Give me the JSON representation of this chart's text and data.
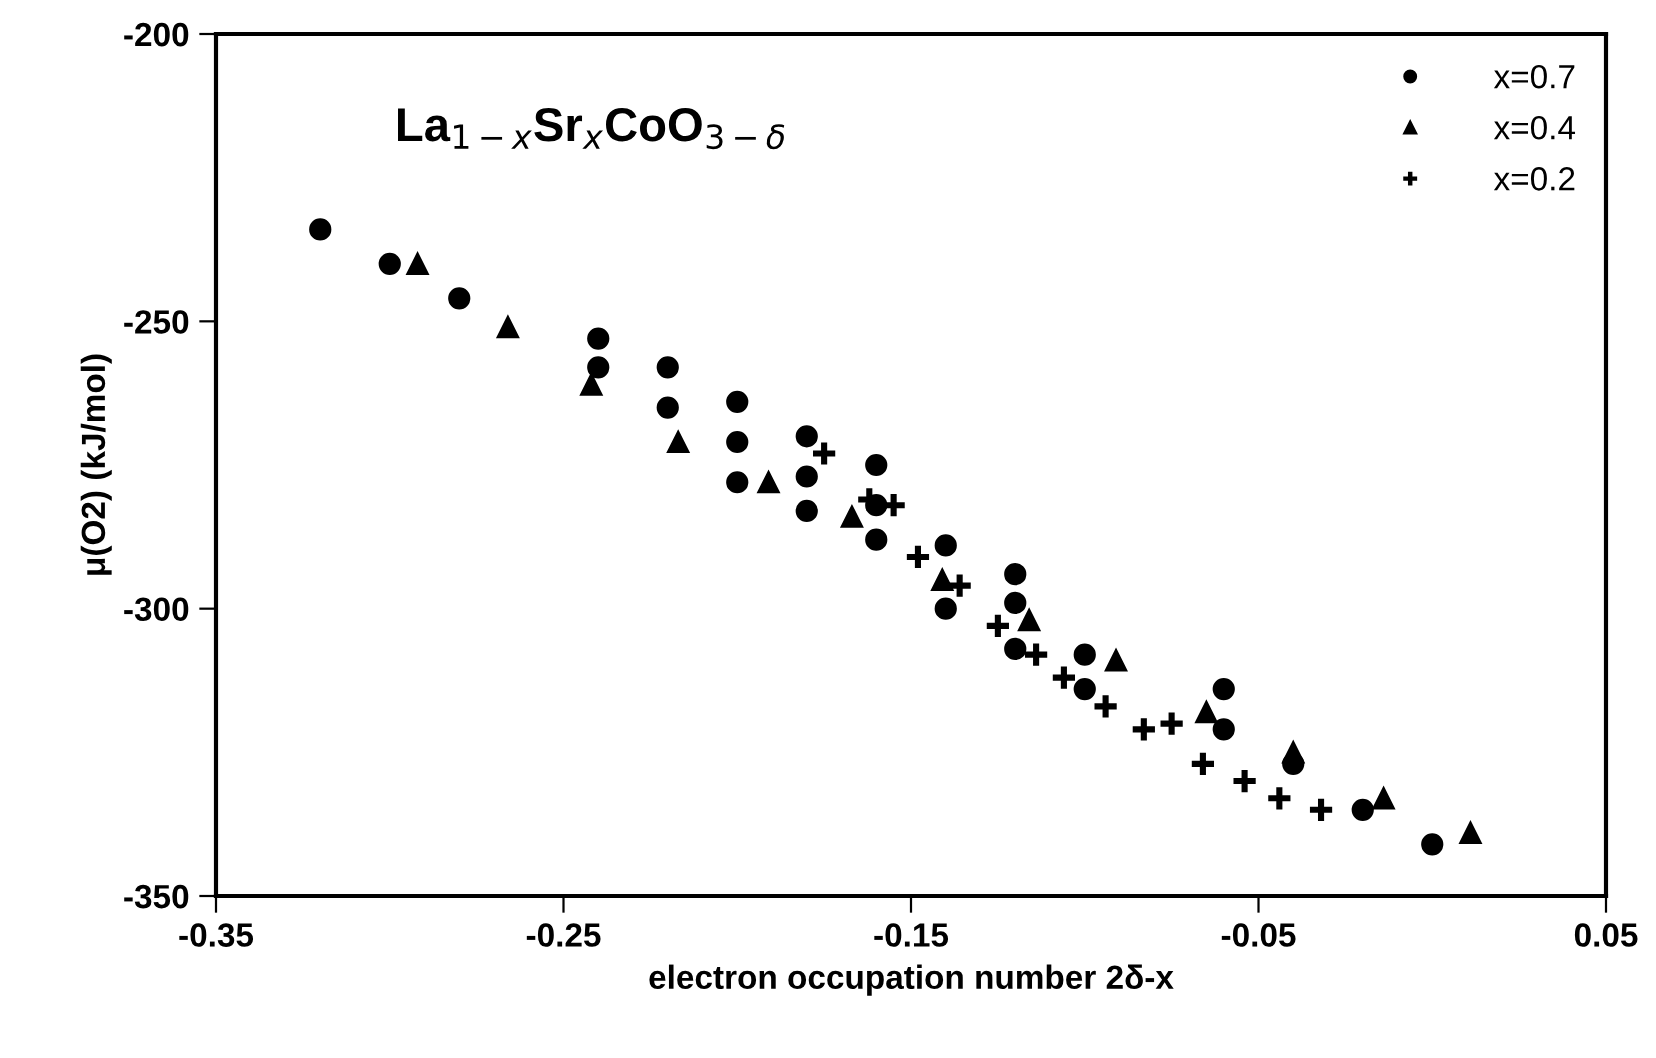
{
  "chart_data": {
    "type": "scatter",
    "title": "La$_{1−x}$Sr$_{x}$CoO$_{3−δ}$",
    "xlabel": "electron occupation number 2δ-x",
    "ylabel": "μ(O2) (kJ/mol)",
    "xlim": [
      -0.35,
      0.05
    ],
    "xticks": [
      -0.35,
      -0.25,
      -0.15,
      -0.05,
      0.05
    ],
    "ylim": [
      -350,
      -200
    ],
    "yticks": [
      -350,
      -300,
      -250,
      -200
    ],
    "grid": false,
    "legend": "top right",
    "series": [
      {
        "name": "x=0.7",
        "color": "#000000",
        "marker": "circle",
        "x": [
          -0.32,
          -0.3,
          -0.28,
          -0.24,
          -0.24,
          -0.22,
          -0.22,
          -0.2,
          -0.2,
          -0.2,
          -0.18,
          -0.18,
          -0.18,
          -0.16,
          -0.16,
          -0.16,
          -0.14,
          -0.14,
          -0.12,
          -0.12,
          -0.12,
          -0.1,
          -0.1,
          -0.06,
          -0.06,
          -0.04,
          -0.02,
          0.0
        ],
        "values": [
          -234,
          -240,
          -246,
          -253,
          -258,
          -258,
          -265,
          -264,
          -271,
          -278,
          -270,
          -277,
          -283,
          -275,
          -282,
          -288,
          -289,
          -300,
          -294,
          -299,
          -307,
          -308,
          -314,
          -314,
          -321,
          -327,
          -335,
          -341
        ]
      },
      {
        "name": "x=0.4",
        "color": "#000000",
        "marker": "triangle",
        "x": [
          -0.292,
          -0.266,
          -0.242,
          -0.217,
          -0.191,
          -0.167,
          -0.141,
          -0.116,
          -0.091,
          -0.065,
          -0.04,
          -0.014,
          0.011
        ],
        "values": [
          -240,
          -251,
          -261,
          -271,
          -278,
          -284,
          -295,
          -302,
          -309,
          -318,
          -325,
          -333,
          -339
        ]
      },
      {
        "name": "x=0.2",
        "color": "#000000",
        "marker": "cross",
        "x": [
          -0.175,
          -0.162,
          -0.155,
          -0.148,
          -0.136,
          -0.125,
          -0.114,
          -0.106,
          -0.094,
          -0.083,
          -0.075,
          -0.066,
          -0.054,
          -0.044,
          -0.032
        ],
        "values": [
          -273,
          -281,
          -282,
          -291,
          -296,
          -303,
          -308,
          -312,
          -317,
          -321,
          -320,
          -327,
          -330,
          -333,
          -335
        ]
      }
    ]
  }
}
